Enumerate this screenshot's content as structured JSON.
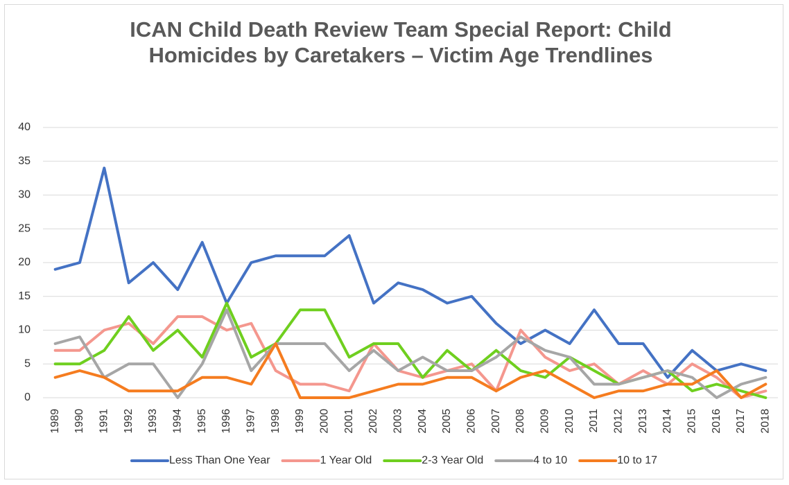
{
  "chart_data": {
    "type": "line",
    "title": "ICAN Child Death Review Team Special Report: Child Homicides by Caretakers – Victim Age Trendlines",
    "categories": [
      "1989",
      "1990",
      "1991",
      "1992",
      "1993",
      "1994",
      "1995",
      "1996",
      "1997",
      "1998",
      "1999",
      "2000",
      "2001",
      "2002",
      "2003",
      "2004",
      "2005",
      "2006",
      "2007",
      "2008",
      "2009",
      "2010",
      "2011",
      "2012",
      "2013",
      "2014",
      "2015",
      "2016",
      "2017",
      "2018"
    ],
    "series": [
      {
        "name": "Less Than One Year",
        "color": "#4472c4",
        "values": [
          19,
          20,
          34,
          17,
          20,
          16,
          23,
          14,
          20,
          21,
          21,
          21,
          24,
          14,
          17,
          16,
          14,
          15,
          11,
          8,
          10,
          8,
          13,
          8,
          8,
          3,
          7,
          4,
          5,
          4
        ]
      },
      {
        "name": "1 Year Old",
        "color": "#f4978e",
        "values": [
          7,
          7,
          10,
          11,
          8,
          12,
          12,
          10,
          11,
          4,
          2,
          2,
          1,
          8,
          4,
          3,
          4,
          5,
          1,
          10,
          6,
          4,
          5,
          2,
          4,
          2,
          5,
          3,
          0,
          1
        ]
      },
      {
        "name": "2-3 Year Old",
        "color": "#6fcf1f",
        "values": [
          5,
          5,
          7,
          12,
          7,
          10,
          6,
          14,
          6,
          8,
          13,
          13,
          6,
          8,
          8,
          3,
          7,
          4,
          7,
          4,
          3,
          6,
          4,
          2,
          3,
          4,
          1,
          2,
          1,
          0
        ]
      },
      {
        "name": "4 to 10",
        "color": "#a6a6a6",
        "values": [
          8,
          9,
          3,
          5,
          5,
          0,
          5,
          13,
          4,
          8,
          8,
          8,
          4,
          7,
          4,
          6,
          4,
          4,
          6,
          9,
          7,
          6,
          2,
          2,
          3,
          4,
          3,
          0,
          2,
          3
        ]
      },
      {
        "name": "10 to 17",
        "color": "#f57c1f",
        "values": [
          3,
          4,
          3,
          1,
          1,
          1,
          3,
          3,
          2,
          8,
          0,
          0,
          0,
          1,
          2,
          2,
          3,
          3,
          1,
          3,
          4,
          2,
          0,
          1,
          1,
          2,
          2,
          4,
          0,
          2
        ]
      }
    ],
    "ylim": [
      0,
      40
    ],
    "yticks": [
      0,
      5,
      10,
      15,
      20,
      25,
      30,
      35,
      40
    ],
    "grid": true,
    "legend": "bottom"
  }
}
